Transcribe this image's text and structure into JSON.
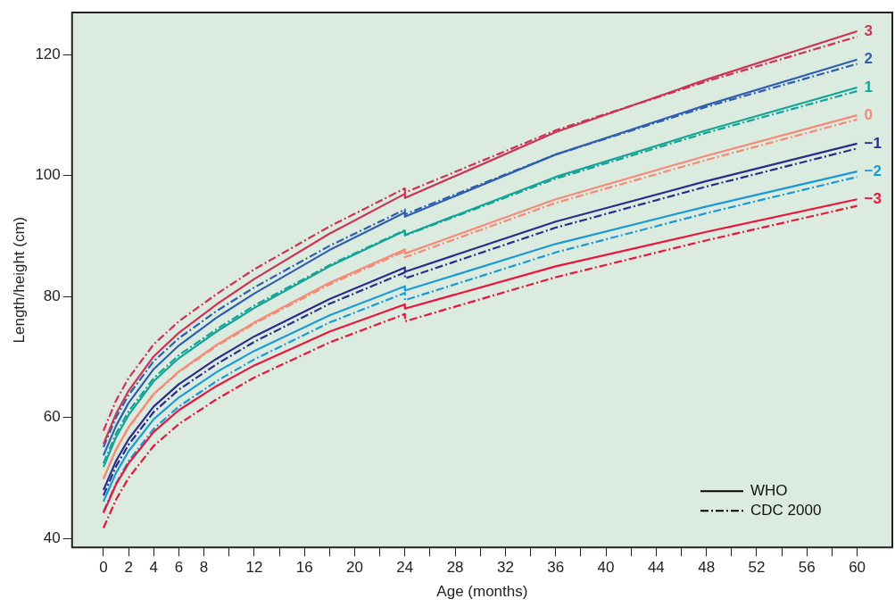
{
  "chart_data": {
    "type": "line",
    "xlabel": "Age (months)",
    "ylabel": "Length/height (cm)",
    "x": [
      0,
      1,
      2,
      4,
      6,
      9,
      12,
      18,
      24,
      24,
      36,
      48,
      60
    ],
    "xlim": [
      -2.5,
      62.8
    ],
    "ylim": [
      38.5,
      127
    ],
    "xticks": [
      0,
      2,
      4,
      6,
      8,
      {
        "value": 10,
        "label": null
      },
      12,
      {
        "value": 14,
        "label": null
      },
      16,
      {
        "value": 18,
        "label": null
      },
      20,
      {
        "value": 22,
        "label": null
      },
      24,
      {
        "value": 26,
        "label": null
      },
      28,
      {
        "value": 30,
        "label": null
      },
      32,
      {
        "value": 34,
        "label": null
      },
      36,
      {
        "value": 38,
        "label": null
      },
      40,
      {
        "value": 42,
        "label": null
      },
      44,
      {
        "value": 46,
        "label": null
      },
      48,
      {
        "value": 50,
        "label": null
      },
      52,
      {
        "value": 54,
        "label": null
      },
      56,
      {
        "value": 58,
        "label": null
      },
      60
    ],
    "yticks": [
      40,
      60,
      80,
      100,
      120
    ],
    "grid": false,
    "legend": "bottom right",
    "series": [
      {
        "name": "3",
        "color": "#cc3355",
        "line_style": "solid",
        "values": [
          55.6,
          60.6,
          64.4,
          70.1,
          74.0,
          78.7,
          82.9,
          90.4,
          97.0,
          96.3,
          107.2,
          115.9,
          123.9
        ]
      },
      {
        "name": "2",
        "color": "#2f5fae",
        "line_style": "solid",
        "values": [
          53.7,
          58.6,
          62.4,
          68.0,
          71.9,
          76.5,
          80.5,
          87.7,
          93.9,
          93.2,
          103.5,
          111.7,
          119.2
        ]
      },
      {
        "name": "1",
        "color": "#13a398",
        "line_style": "solid",
        "values": [
          51.8,
          56.7,
          60.4,
          66.0,
          69.8,
          74.2,
          78.1,
          85.0,
          90.9,
          90.2,
          99.8,
          107.5,
          114.6
        ]
      },
      {
        "name": "0",
        "color": "#f48a77",
        "line_style": "solid",
        "values": [
          49.9,
          54.7,
          58.4,
          63.9,
          67.6,
          72.0,
          75.7,
          82.3,
          87.8,
          87.1,
          96.1,
          103.3,
          110.0
        ]
      },
      {
        "name": "−1",
        "color": "#2b2d8a",
        "line_style": "solid",
        "values": [
          48.0,
          52.8,
          56.4,
          61.8,
          65.5,
          69.7,
          73.4,
          79.6,
          84.8,
          84.1,
          92.4,
          99.1,
          105.3
        ]
      },
      {
        "name": "−2",
        "color": "#1c9ad6",
        "line_style": "solid",
        "values": [
          46.1,
          50.8,
          54.4,
          59.7,
          63.3,
          67.5,
          71.0,
          76.9,
          81.7,
          81.0,
          88.7,
          94.9,
          100.7
        ]
      },
      {
        "name": "−3",
        "color": "#e8173a",
        "line_style": "solid",
        "values": [
          44.2,
          48.9,
          52.4,
          57.6,
          61.2,
          65.2,
          68.6,
          74.2,
          78.7,
          78.0,
          85.0,
          90.7,
          96.1
        ]
      },
      {
        "color": "#cc3355",
        "line_style": "dashed",
        "values": [
          57.8,
          62.8,
          66.5,
          72.1,
          75.9,
          80.4,
          84.5,
          91.6,
          97.9,
          97.2,
          107.5,
          115.6,
          123.0
        ]
      },
      {
        "color": "#2f5fae",
        "line_style": "dashed",
        "values": [
          55.1,
          60.0,
          63.7,
          69.3,
          73.1,
          77.6,
          81.5,
          88.4,
          94.4,
          93.6,
          103.5,
          111.4,
          118.5
        ]
      },
      {
        "color": "#13a398",
        "line_style": "dashed",
        "values": [
          52.4,
          57.3,
          61.0,
          66.5,
          70.3,
          74.6,
          78.5,
          85.2,
          91.0,
          90.1,
          99.5,
          107.1,
          114.0
        ]
      },
      {
        "color": "#f48a77",
        "line_style": "dashed",
        "values": [
          49.8,
          54.6,
          58.3,
          63.8,
          67.5,
          71.8,
          75.5,
          82.0,
          87.5,
          86.5,
          95.5,
          102.6,
          109.3
        ]
      },
      {
        "color": "#2b2d8a",
        "line_style": "dashed",
        "values": [
          47.1,
          51.9,
          55.5,
          60.9,
          64.6,
          68.8,
          72.5,
          78.8,
          84.0,
          83.0,
          91.4,
          98.2,
          104.5
        ]
      },
      {
        "color": "#1c9ad6",
        "line_style": "dashed",
        "values": [
          44.4,
          49.1,
          52.8,
          58.1,
          61.8,
          66.0,
          69.6,
          75.7,
          80.6,
          79.4,
          87.3,
          93.8,
          99.8
        ]
      },
      {
        "color": "#e8173a",
        "line_style": "dashed",
        "values": [
          41.7,
          46.4,
          50.0,
          55.3,
          58.9,
          63.0,
          66.6,
          72.4,
          77.1,
          75.9,
          83.2,
          89.3,
          95.0
        ]
      },
      {
        "name": "WHO",
        "color": "#000000",
        "line_style": "solid",
        "values": [
          null,
          null,
          null,
          null,
          null,
          null,
          null,
          null,
          null,
          null,
          null,
          null,
          null
        ]
      },
      {
        "name": "CDC 2000",
        "color": "#000000",
        "line_style": "dashed",
        "values": [
          null,
          null,
          null,
          null,
          null,
          null,
          null,
          null,
          null,
          null,
          null,
          null,
          null
        ]
      }
    ]
  }
}
